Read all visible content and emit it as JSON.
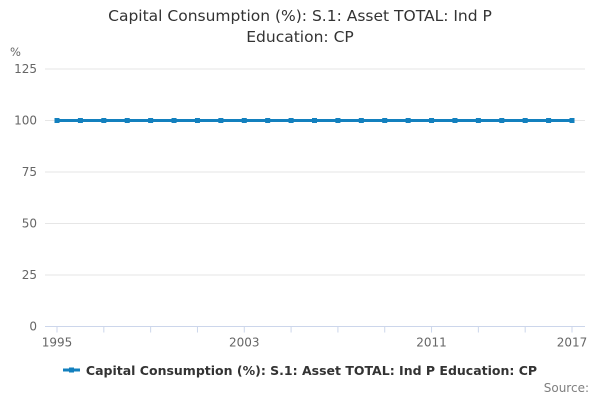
{
  "title_lines": {
    "line1": "Capital Consumption (%): S.1: Asset TOTAL: Ind P",
    "line2": "Education: CP"
  },
  "y_axis": {
    "unit": "%"
  },
  "legend": {
    "label": "Capital Consumption (%): S.1: Asset TOTAL: Ind P Education: CP"
  },
  "source_label": "Source:",
  "colors": {
    "line": "#1380be",
    "grid": "#e6e6e6",
    "axis": "#ccd6eb",
    "tick_label": "#666666",
    "title_text": "#333333",
    "source_text": "#7f7f7f"
  },
  "chart_data": {
    "type": "line",
    "title": "Capital Consumption (%): S.1: Asset TOTAL: Ind P Education: CP",
    "ylabel": "%",
    "xlabel": "",
    "x": [
      1995,
      1996,
      1997,
      1998,
      1999,
      2000,
      2001,
      2002,
      2003,
      2004,
      2005,
      2006,
      2007,
      2008,
      2009,
      2010,
      2011,
      2012,
      2013,
      2014,
      2015,
      2016,
      2017
    ],
    "series": [
      {
        "name": "Capital Consumption (%): S.1: Asset TOTAL: Ind P Education: CP",
        "values": [
          100,
          100,
          100,
          100,
          100,
          100,
          100,
          100,
          100,
          100,
          100,
          100,
          100,
          100,
          100,
          100,
          100,
          100,
          100,
          100,
          100,
          100,
          100
        ]
      }
    ],
    "ylim": [
      0,
      125
    ],
    "yticks": [
      0,
      25,
      50,
      75,
      100,
      125
    ],
    "xticks_labeled": [
      1995,
      2003,
      2011,
      2017
    ],
    "xtick_minor_step": 2,
    "grid": true,
    "marker": "square",
    "legend_position": "bottom"
  }
}
